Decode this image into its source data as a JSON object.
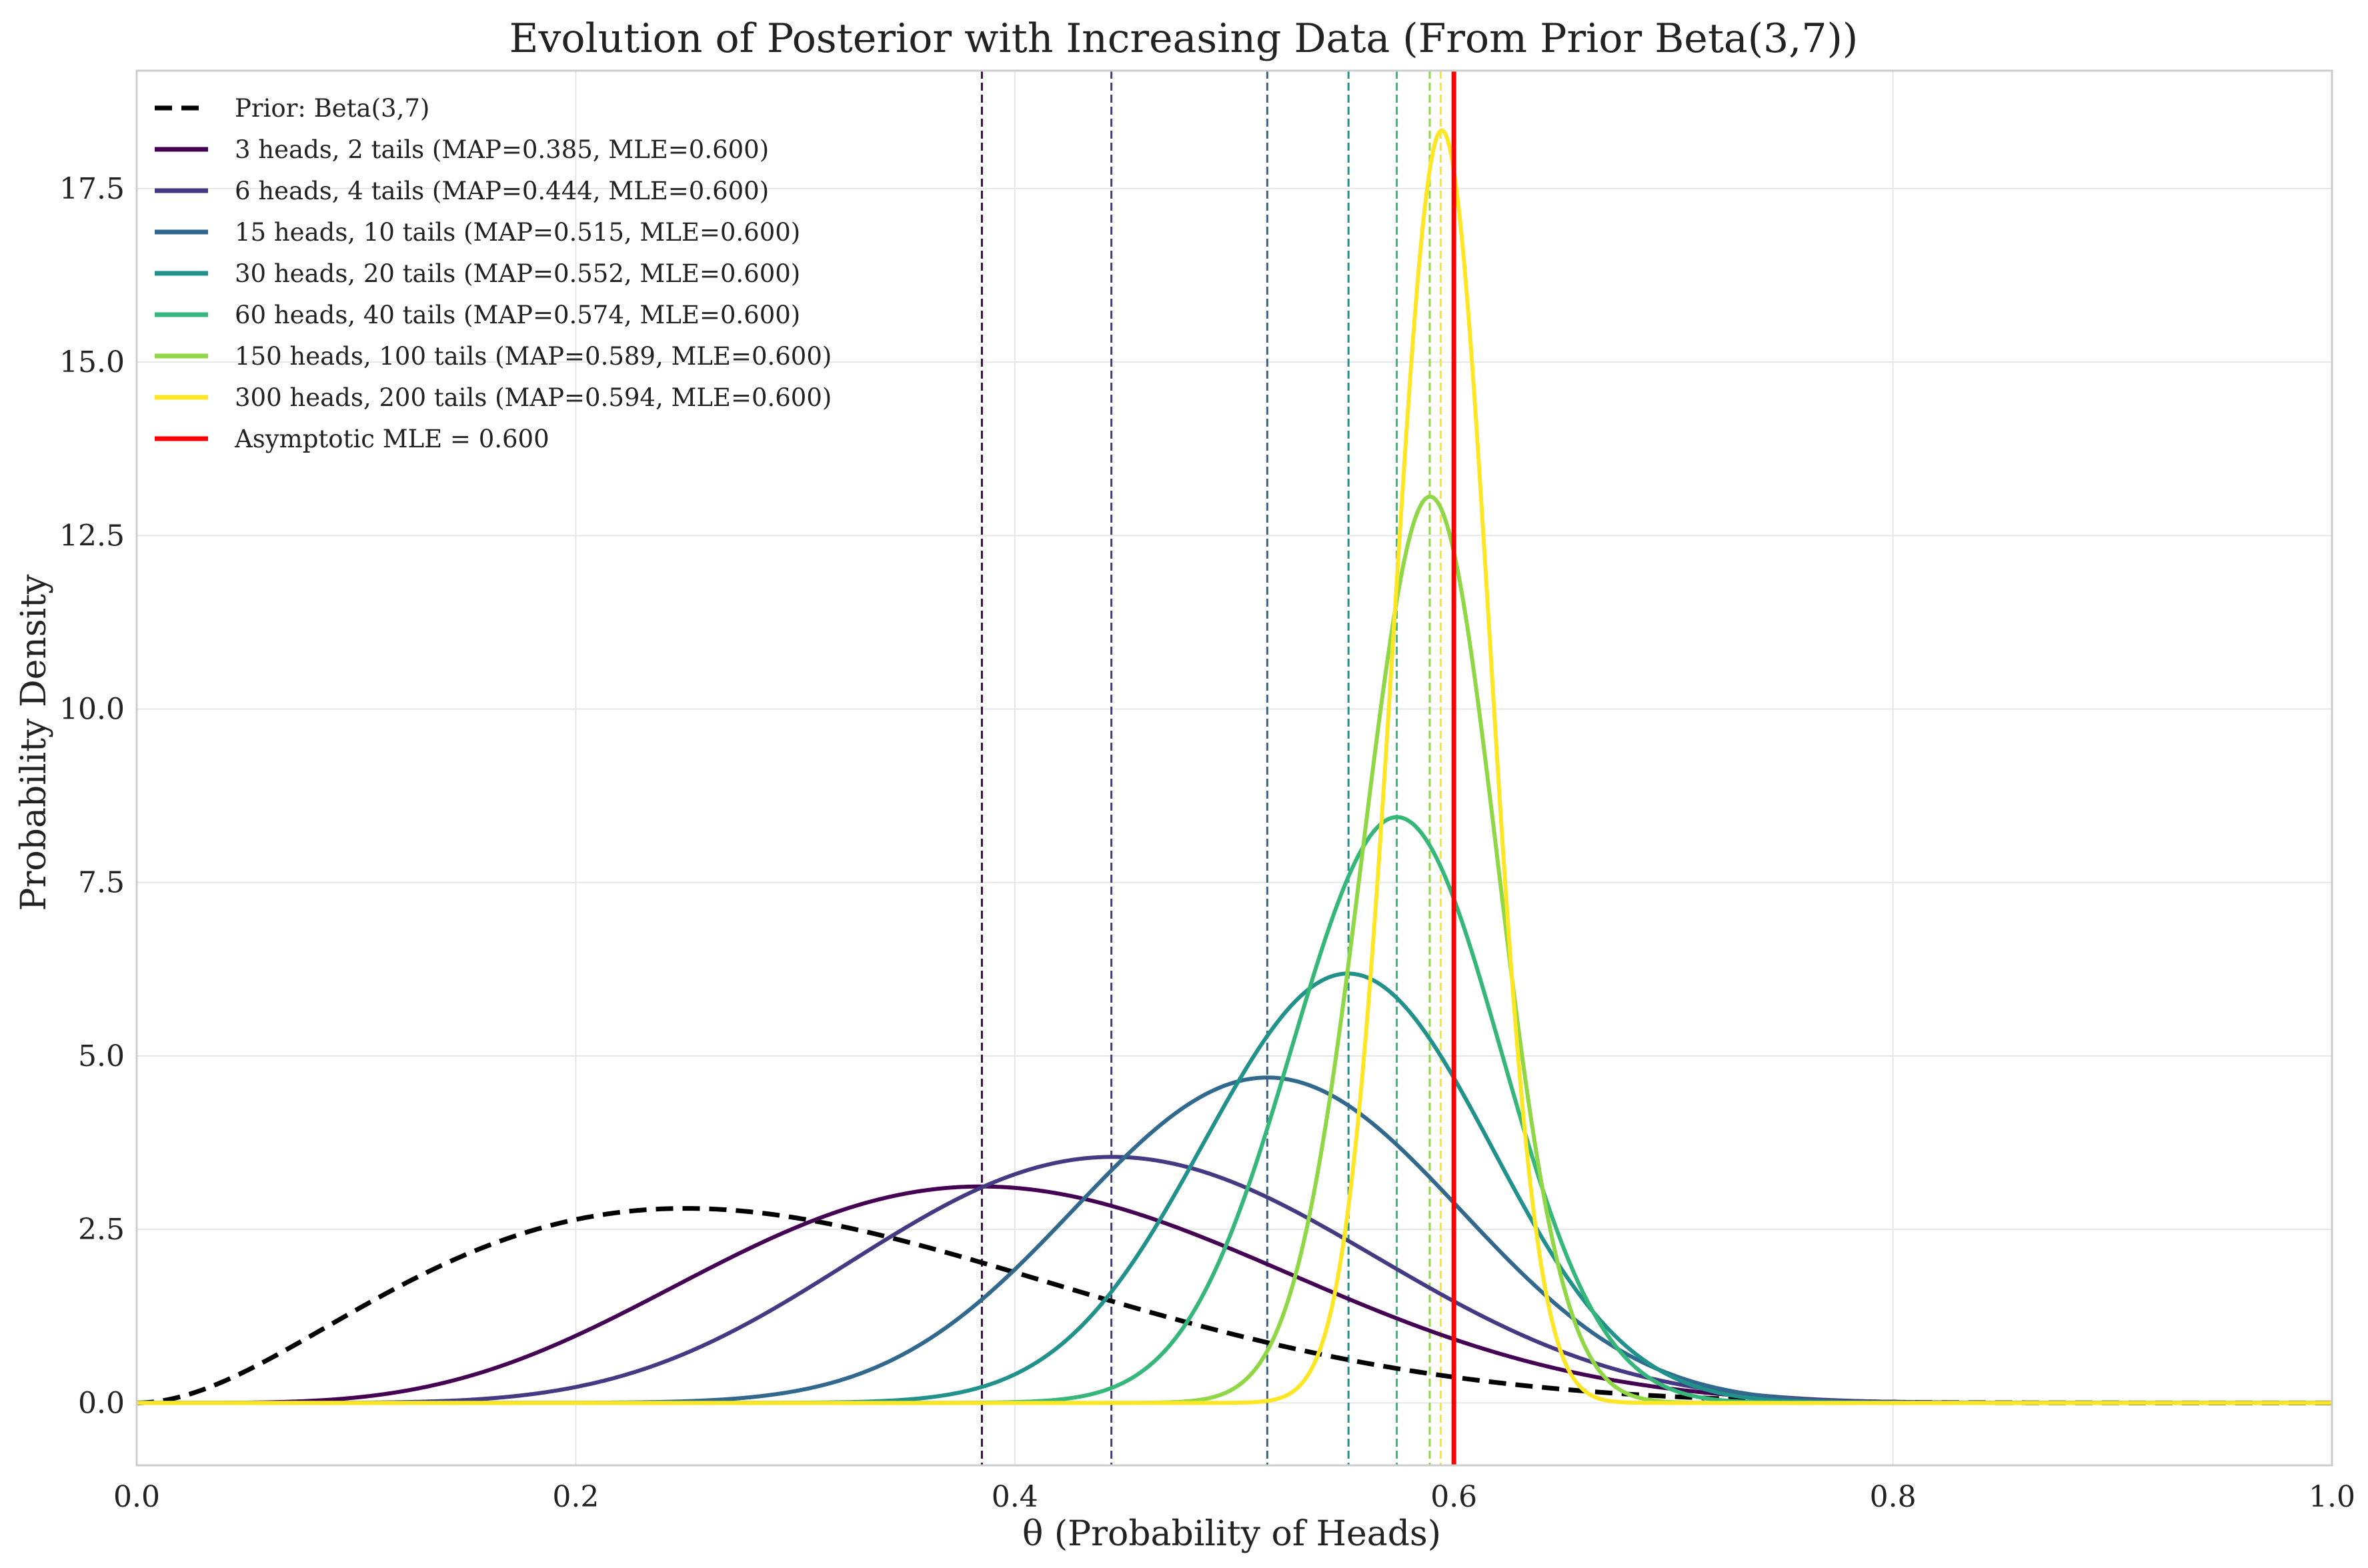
{
  "chart_data": {
    "type": "line",
    "title": "Evolution of Posterior with Increasing Data (From Prior Beta(3,7))",
    "xlabel": "θ (Probability of Heads)",
    "ylabel": "Probability Density",
    "xlim": [
      0.0,
      1.0
    ],
    "ylim": [
      -0.9,
      19.2
    ],
    "x_ticks": [
      0.0,
      0.2,
      0.4,
      0.6,
      0.8,
      1.0
    ],
    "x_tick_labels": [
      "0.0",
      "0.2",
      "0.4",
      "0.6",
      "0.8",
      "1.0"
    ],
    "y_ticks": [
      0.0,
      2.5,
      5.0,
      7.5,
      10.0,
      12.5,
      15.0,
      17.5
    ],
    "y_tick_labels": [
      "0.0",
      "2.5",
      "5.0",
      "7.5",
      "10.0",
      "12.5",
      "15.0",
      "17.5"
    ],
    "grid": true,
    "legend_position": "top-left",
    "prior": {
      "name": "Prior: Beta(3,7)",
      "alpha": 3,
      "beta": 7,
      "color": "#000000",
      "style": "dashed"
    },
    "series": [
      {
        "name": "3 heads, 2 tails (MAP=0.385, MLE=0.600)",
        "alpha": 6,
        "beta": 9,
        "map": 0.385,
        "mle": 0.6,
        "color": "#440154"
      },
      {
        "name": "6 heads, 4 tails (MAP=0.444, MLE=0.600)",
        "alpha": 9,
        "beta": 11,
        "map": 0.444,
        "mle": 0.6,
        "color": "#443a83"
      },
      {
        "name": "15 heads, 10 tails (MAP=0.515, MLE=0.600)",
        "alpha": 18,
        "beta": 17,
        "map": 0.515,
        "mle": 0.6,
        "color": "#31688e"
      },
      {
        "name": "30 heads, 20 tails (MAP=0.552, MLE=0.600)",
        "alpha": 33,
        "beta": 27,
        "map": 0.552,
        "mle": 0.6,
        "color": "#21918c"
      },
      {
        "name": "60 heads, 40 tails (MAP=0.574, MLE=0.600)",
        "alpha": 63,
        "beta": 47,
        "map": 0.574,
        "mle": 0.6,
        "color": "#35b779"
      },
      {
        "name": "150 heads, 100 tails (MAP=0.589, MLE=0.600)",
        "alpha": 153,
        "beta": 107,
        "map": 0.589,
        "mle": 0.6,
        "color": "#8fd744"
      },
      {
        "name": "300 heads, 200 tails (MAP=0.594, MLE=0.600)",
        "alpha": 303,
        "beta": 207,
        "map": 0.594,
        "mle": 0.6,
        "color": "#fde725"
      }
    ],
    "asymptote": {
      "name": "Asymptotic MLE = 0.600",
      "x": 0.6,
      "color": "#ff0000"
    }
  }
}
